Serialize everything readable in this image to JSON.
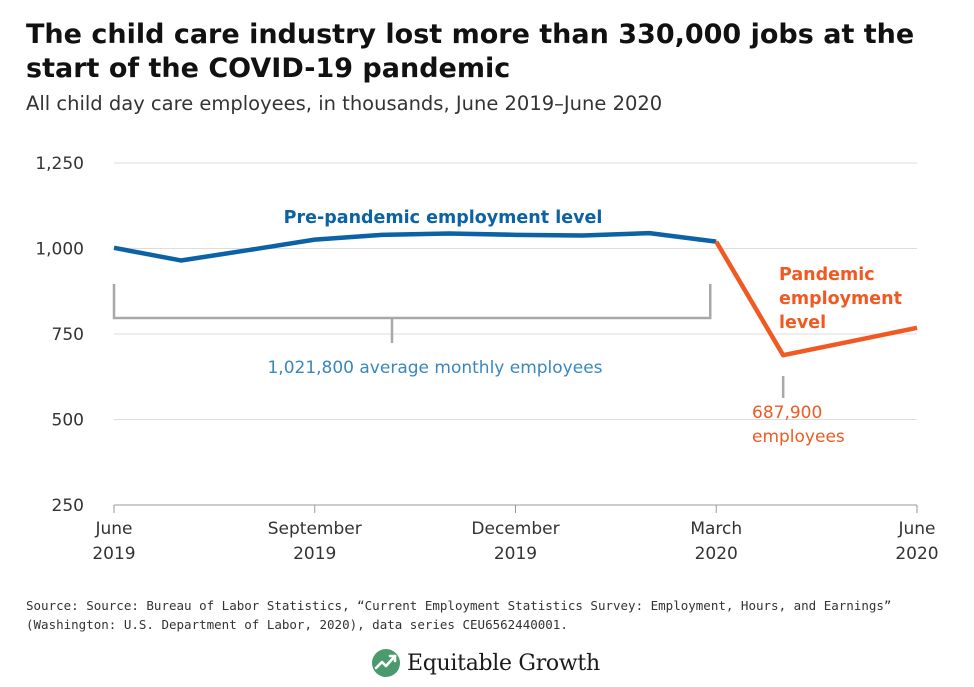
{
  "header": {
    "title": "The child care industry lost more than 330,000 jobs at the start of the COVID-19 pandemic",
    "subtitle": "All child day care employees, in thousands, June 2019–June 2020"
  },
  "chart_data": {
    "type": "line",
    "title": "The child care industry lost more than 330,000 jobs at the start of the COVID-19 pandemic",
    "subtitle": "All child day care employees, in thousands, June 2019–June 2020",
    "ylim": [
      250,
      1250
    ],
    "yticks": [
      250,
      500,
      750,
      1000,
      1250
    ],
    "ytick_labels": [
      "250",
      "500",
      "750",
      "1,000",
      "1,250"
    ],
    "grid": true,
    "x": [
      "2019-06",
      "2019-07",
      "2019-08",
      "2019-09",
      "2019-10",
      "2019-11",
      "2019-12",
      "2020-01",
      "2020-02",
      "2020-03",
      "2020-04",
      "2020-05",
      "2020-06"
    ],
    "xticks": [
      {
        "at": "2019-06",
        "line1": "June",
        "line2": "2019"
      },
      {
        "at": "2019-09",
        "line1": "September",
        "line2": "2019"
      },
      {
        "at": "2019-12",
        "line1": "December",
        "line2": "2019"
      },
      {
        "at": "2020-03",
        "line1": "March",
        "line2": "2020"
      },
      {
        "at": "2020-06",
        "line1": "June",
        "line2": "2020"
      }
    ],
    "series": [
      {
        "name": "Pre-pandemic employment level",
        "color": "#0b62a4",
        "x": [
          "2019-06",
          "2019-07",
          "2019-08",
          "2019-09",
          "2019-10",
          "2019-11",
          "2019-12",
          "2020-01",
          "2020-02",
          "2020-03"
        ],
        "values": [
          1002,
          965,
          995,
          1026,
          1040,
          1044,
          1040,
          1038,
          1045,
          1020
        ]
      },
      {
        "name": "Pandemic employment level",
        "color": "#f05a22",
        "x": [
          "2020-03",
          "2020-04",
          "2020-05",
          "2020-06"
        ],
        "values": [
          1020,
          688,
          728,
          768
        ]
      }
    ],
    "annotations": {
      "pre_label": "Pre-pandemic employment level",
      "pandemic_label_lines": [
        "Pandemic",
        "employment",
        "level"
      ],
      "average_text": "1,021,800 average monthly employees",
      "average_color": "#3a87c0",
      "low_text_lines": [
        "687,900",
        "employees"
      ],
      "low_color": "#f05a22"
    }
  },
  "footer": {
    "source_line1": "Source: Source: Bureau of Labor Statistics, “Current Employment Statistics Survey: Employment, Hours, and Earnings”",
    "source_line2": "(Washington: U.S. Department of Labor, 2020), data series CEU6562440001.",
    "logo_text": "Equitable Growth",
    "logo_icon": "equitable-growth-logo-icon"
  }
}
